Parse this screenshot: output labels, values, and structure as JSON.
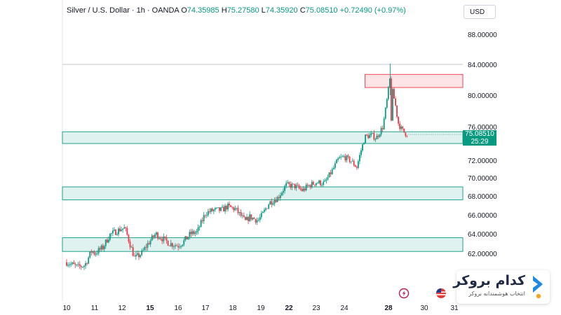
{
  "legend": {
    "symbol": "Silver / U.S. Dollar · 1h · OANDA",
    "o_label": "O",
    "o_value": "74.35985",
    "h_label": "H",
    "h_value": "75.27580",
    "l_label": "L",
    "l_value": "74.35920",
    "c_label": "C",
    "c_value": "75.08510",
    "change": "+0.72490 (+0.97%)"
  },
  "currency": "USD",
  "price_tag": {
    "price": "75.08510",
    "countdown": "25:29"
  },
  "brand": {
    "title": "کدام بروکر",
    "subtitle": "انتخاب هوشمندانه بروکر"
  },
  "colors": {
    "up": "#089981",
    "down": "#f23645",
    "zone_green": "#089981",
    "zone_red": "#f23645",
    "logo_blue": "#1e88e5",
    "logo_dot": "#f5a623"
  },
  "icons": [
    "lightning-event-icon",
    "us-flag-event-icon"
  ],
  "chart_data": {
    "type": "candlestick",
    "title": "",
    "ylim": [
      60,
      90
    ],
    "y_ticks": [
      62,
      64,
      66,
      68,
      70,
      72,
      76,
      80,
      84,
      88
    ],
    "y_tick_labels": [
      "62.00000",
      "64.00000",
      "66.00000",
      "68.00000",
      "70.00000",
      "72.00000",
      "76.00000",
      "80.00000",
      "84.00000",
      "88.00000"
    ],
    "x_ticks": [
      {
        "label": "10",
        "t": 0
      },
      {
        "label": "11",
        "t": 1
      },
      {
        "label": "12",
        "t": 2
      },
      {
        "label": "15",
        "t": 3
      },
      {
        "label": "16",
        "t": 4
      },
      {
        "label": "17",
        "t": 5
      },
      {
        "label": "18",
        "t": 6
      },
      {
        "label": "19",
        "t": 7
      },
      {
        "label": "22",
        "t": 8
      },
      {
        "label": "23",
        "t": 9
      },
      {
        "label": "24",
        "t": 10
      },
      {
        "label": "28",
        "t": 11.6
      },
      {
        "label": "30",
        "t": 12.9
      },
      {
        "label": "31",
        "t": 13.9
      }
    ],
    "last_price": 75.0851,
    "top_line": 84,
    "zones": [
      {
        "name": "supply",
        "color": "red",
        "from": 81,
        "to": 82.7,
        "t_start": 10.75
      },
      {
        "name": "zone-75",
        "color": "green",
        "from": 74,
        "to": 75.4
      },
      {
        "name": "zone-68",
        "color": "green",
        "from": 67.6,
        "to": 69
      },
      {
        "name": "zone-62",
        "color": "green",
        "from": 62.2,
        "to": 63.6
      }
    ],
    "path": [
      [
        0,
        61.1
      ],
      [
        0.4,
        60.6
      ],
      [
        0.65,
        60.8
      ],
      [
        0.9,
        62.3
      ],
      [
        1.0,
        62.0
      ],
      [
        1.3,
        62.6
      ],
      [
        1.55,
        63.9
      ],
      [
        1.75,
        64.2
      ],
      [
        1.95,
        64.5
      ],
      [
        2.1,
        64.6
      ],
      [
        2.45,
        61.5
      ],
      [
        2.7,
        62.0
      ],
      [
        2.9,
        62.9
      ],
      [
        3.2,
        64.0
      ],
      [
        3.5,
        63.4
      ],
      [
        3.7,
        63.0
      ],
      [
        4.0,
        62.8
      ],
      [
        4.2,
        63.2
      ],
      [
        4.45,
        64.0
      ],
      [
        4.7,
        64.2
      ],
      [
        5.0,
        66.2
      ],
      [
        5.3,
        66.5
      ],
      [
        5.6,
        66.5
      ],
      [
        5.8,
        66.9
      ],
      [
        6.1,
        66.6
      ],
      [
        6.45,
        65.3
      ],
      [
        6.6,
        65.8
      ],
      [
        6.9,
        65.4
      ],
      [
        7.05,
        66.0
      ],
      [
        7.3,
        67.3
      ],
      [
        7.6,
        67.8
      ],
      [
        7.9,
        69.2
      ],
      [
        8.2,
        69.1
      ],
      [
        8.5,
        68.6
      ],
      [
        8.7,
        69.1
      ],
      [
        9.0,
        69.5
      ],
      [
        9.3,
        69.4
      ],
      [
        9.6,
        71.0
      ],
      [
        9.8,
        72.2
      ],
      [
        10.0,
        72.4
      ],
      [
        10.25,
        71.9
      ],
      [
        10.45,
        71.2
      ],
      [
        10.6,
        73.1
      ],
      [
        10.75,
        74.8
      ],
      [
        11.0,
        75.0
      ],
      [
        11.15,
        74.6
      ],
      [
        11.4,
        76.0
      ],
      [
        11.55,
        79.5
      ],
      [
        11.65,
        82.1
      ],
      [
        11.7,
        77.0
      ],
      [
        11.75,
        80.5
      ],
      [
        11.85,
        78.8
      ],
      [
        11.95,
        76.5
      ],
      [
        12.05,
        75.8
      ],
      [
        12.2,
        75.2
      ],
      [
        12.3,
        75.08
      ]
    ]
  }
}
